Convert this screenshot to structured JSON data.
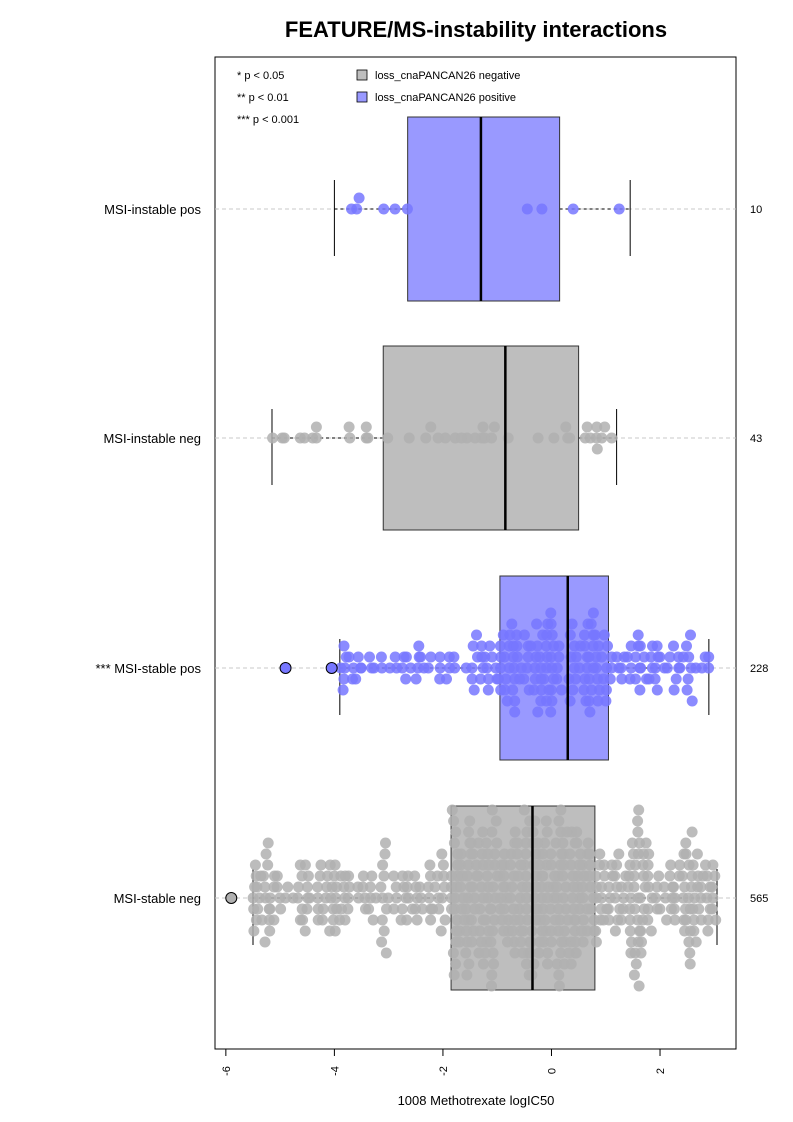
{
  "chart_data": {
    "type": "boxplot-beeswarm",
    "title": "FEATURE/MS-instability interactions",
    "xlabel": "1008 Methotrexate logIC50",
    "xlim": [
      -6.2,
      3.4
    ],
    "xticks": [
      -6,
      -4,
      -2,
      0,
      2
    ],
    "xtick_labels": [
      "-6",
      "-4",
      "-2",
      "0",
      "2"
    ],
    "significance_legend": [
      "* p < 0.05",
      "** p < 0.01",
      "*** p < 0.001"
    ],
    "legend": [
      {
        "label": "loss_cnaPANCAN26 negative",
        "color": "#bebebe"
      },
      {
        "label": "loss_cnaPANCAN26 positive",
        "color": "#9999ff"
      }
    ],
    "groups": [
      {
        "label": "MSI-instable pos",
        "n": "10",
        "fill": "#9999ff",
        "dot": "#7777ff",
        "whisker_low": -4.0,
        "q1": -2.65,
        "median": -1.3,
        "q3": 0.15,
        "whisker_high": 1.45,
        "outliers": [],
        "n_points": 10,
        "spread": 0.6
      },
      {
        "label": "MSI-instable neg",
        "n": "43",
        "fill": "#bebebe",
        "dot": "#b0b0b0",
        "whisker_low": -5.15,
        "q1": -3.1,
        "median": -0.85,
        "q3": 0.5,
        "whisker_high": 1.2,
        "outliers": [],
        "n_points": 43,
        "spread": 0.8
      },
      {
        "label": "*** MSI-stable pos",
        "n": "228",
        "fill": "#9999ff",
        "dot": "#7777ff",
        "whisker_low": -3.9,
        "q1": -0.95,
        "median": 0.3,
        "q3": 1.05,
        "whisker_high": 2.9,
        "outliers": [
          -4.9,
          -4.05
        ],
        "n_points": 228,
        "spread": 1.0
      },
      {
        "label": "MSI-stable neg",
        "n": "565",
        "fill": "#bebebe",
        "dot": "#b0b0b0",
        "whisker_low": -5.5,
        "q1": -1.85,
        "median": -0.35,
        "q3": 0.8,
        "whisker_high": 3.05,
        "outliers": [
          -5.9
        ],
        "n_points": 565,
        "spread": 1.0
      }
    ]
  }
}
